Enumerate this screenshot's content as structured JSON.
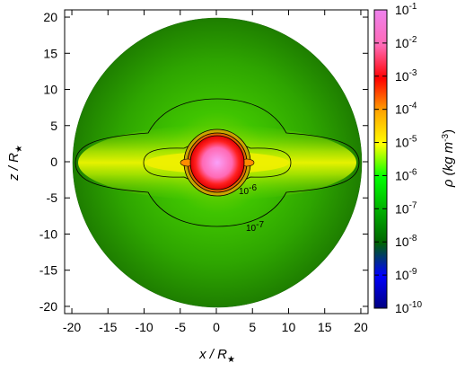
{
  "chart_data": {
    "type": "heatmap",
    "title": "",
    "xlabel": "x / R",
    "xlabel_sub": "★",
    "ylabel": "z / R",
    "ylabel_sub": "★",
    "xlim": [
      -21,
      21
    ],
    "ylim": [
      -21,
      21
    ],
    "x_ticks": [
      "-20",
      "-15",
      "-10",
      "-5",
      "0",
      "5",
      "10",
      "15",
      "20"
    ],
    "x_tick_values": [
      -20,
      -15,
      -10,
      -5,
      0,
      5,
      10,
      15,
      20
    ],
    "y_ticks": [
      "20",
      "15",
      "10",
      "5",
      "0",
      "-5",
      "-10",
      "-15",
      "-20"
    ],
    "y_tick_values": [
      20,
      15,
      10,
      5,
      0,
      -5,
      -10,
      -15,
      -20
    ],
    "domain_radius": 20,
    "colorbar": {
      "label": "ρ (kg m",
      "label_sup": "-3",
      "label_close": ")",
      "scale": "log",
      "range": [
        1e-10,
        0.1
      ],
      "tick_values": [
        -1,
        -2,
        -3,
        -4,
        -5,
        -6,
        -7,
        -8,
        -9,
        -10
      ],
      "tick_base": "10",
      "tick_exponents": [
        "-1",
        "-2",
        "-3",
        "-4",
        "-5",
        "-6",
        "-7",
        "-8",
        "-9",
        "-10"
      ],
      "colors": [
        "#000080",
        "#0000ff",
        "#006400",
        "#00b000",
        "#00ff00",
        "#ffff00",
        "#ffa500",
        "#ff0000",
        "#ff69b4",
        "#ee82ee"
      ]
    },
    "contours": [
      {
        "level": "10",
        "level_sup": "-6"
      },
      {
        "level": "10",
        "level_sup": "-7"
      }
    ]
  }
}
